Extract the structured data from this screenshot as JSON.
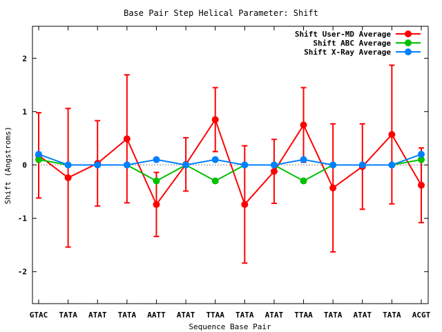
{
  "chart_data": {
    "type": "line",
    "title": "Base Pair Step Helical Parameter: Shift",
    "xlabel": "Sequence Base Pair",
    "ylabel": "Shift (Angstroms)",
    "categories": [
      "GTAC",
      "TATA",
      "ATAT",
      "TATA",
      "AATT",
      "ATAT",
      "TTAA",
      "TATA",
      "ATAT",
      "TTAA",
      "TATA",
      "ATAT",
      "TATA",
      "ACGT"
    ],
    "ylim": [
      -2.6,
      2.6
    ],
    "yticks": [
      -2,
      -1,
      0,
      1,
      2
    ],
    "ytick_labels": [
      "-2",
      "-1",
      "0",
      "1",
      "2"
    ],
    "grid": false,
    "legend_position": "top-right",
    "series": [
      {
        "name": "Shift User-MD Average",
        "color": "#ff0000",
        "values": [
          0.18,
          -0.24,
          0.03,
          0.49,
          -0.74,
          0.01,
          0.85,
          -0.74,
          -0.12,
          0.75,
          -0.43,
          -0.03,
          0.57,
          -0.38
        ],
        "error": [
          0.8,
          1.3,
          0.8,
          1.2,
          0.6,
          0.5,
          0.6,
          1.1,
          0.6,
          0.7,
          1.2,
          0.8,
          1.3,
          0.7
        ]
      },
      {
        "name": "Shift ABC Average",
        "color": "#00c000",
        "values": [
          0.1,
          0.0,
          0.0,
          0.0,
          -0.3,
          0.0,
          -0.3,
          0.0,
          0.0,
          -0.3,
          0.0,
          0.0,
          0.0,
          0.1
        ]
      },
      {
        "name": "Shift X-Ray Average",
        "color": "#0080ff",
        "values": [
          0.2,
          0.0,
          0.0,
          0.0,
          0.1,
          0.0,
          0.1,
          0.0,
          0.0,
          0.1,
          0.0,
          0.0,
          0.0,
          0.2
        ]
      }
    ]
  }
}
